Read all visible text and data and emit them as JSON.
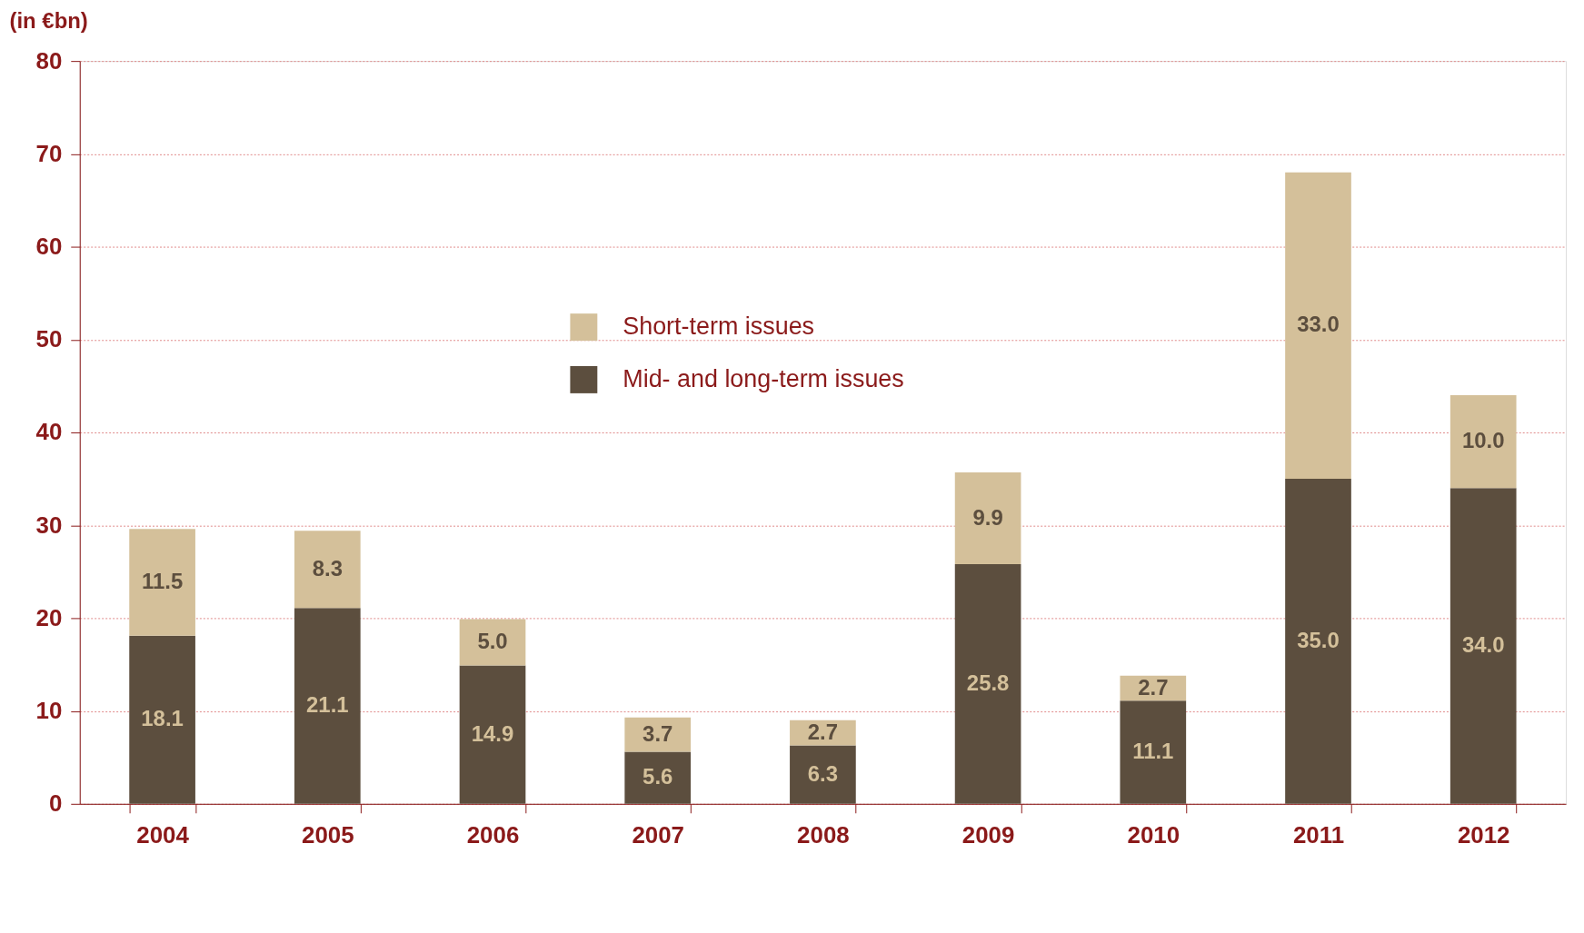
{
  "chart_data": {
    "type": "bar",
    "stacked": true,
    "ylabel": "(in €bn)",
    "categories": [
      "2004",
      "2005",
      "2006",
      "2007",
      "2008",
      "2009",
      "2010",
      "2011",
      "2012"
    ],
    "series": [
      {
        "name": "Mid- and long-term issues",
        "color": "#5c4e3e",
        "values": [
          18.1,
          21.1,
          14.9,
          5.6,
          6.3,
          25.8,
          11.1,
          35.0,
          34.0
        ],
        "value_labels": [
          "18.1",
          "21.1",
          "14.9",
          "5.6",
          "6.3",
          "25.8",
          "11.1",
          "35.0",
          "34.0"
        ]
      },
      {
        "name": "Short-term issues",
        "color": "#d4c09a",
        "values": [
          11.5,
          8.3,
          5.0,
          3.7,
          2.7,
          9.9,
          2.7,
          33.0,
          10.0
        ],
        "value_labels": [
          "11.5",
          "8.3",
          "5.0",
          "3.7",
          "2.7",
          "9.9",
          "2.7",
          "33.0",
          "10.0"
        ]
      }
    ],
    "ylim": [
      0,
      80
    ],
    "yticks": [
      0,
      10,
      20,
      30,
      40,
      50,
      60,
      70,
      80
    ],
    "grid": "y",
    "legend": "center"
  }
}
